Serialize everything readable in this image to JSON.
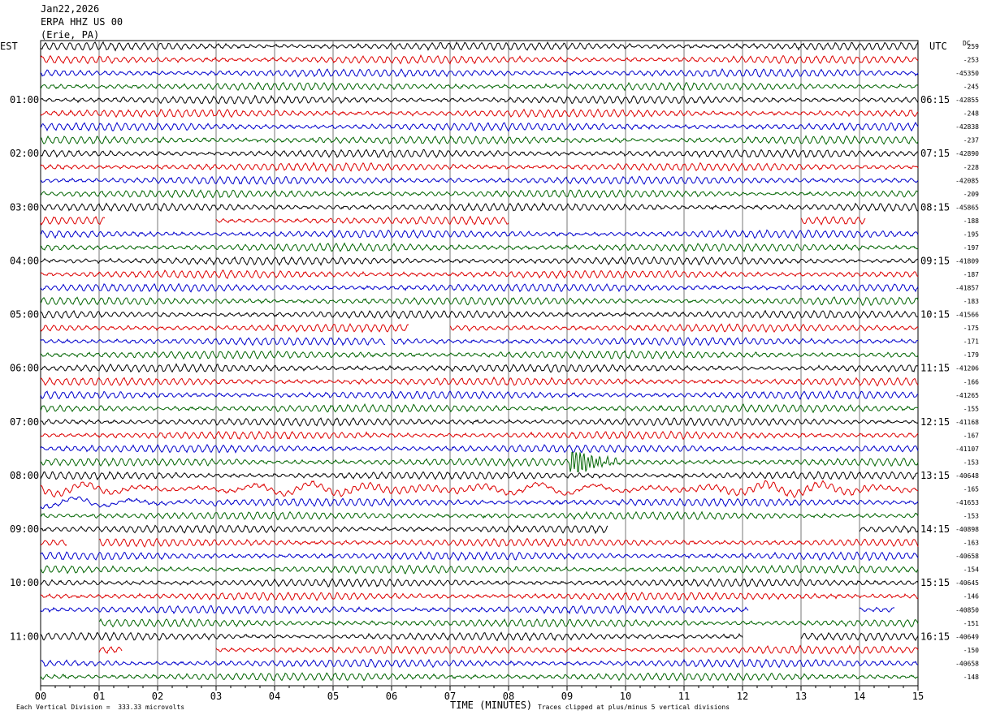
{
  "header": {
    "date": "Jan22,2026",
    "station": "ERPA HHZ US 00",
    "location": "(Erie, PA)"
  },
  "left_tz": "EST",
  "right_tz": "UTC",
  "dc_label": "DC",
  "footer": {
    "vertical_division": "Each Vertical Division =  333.33 microvolts",
    "xlabel": "TIME (MINUTES)",
    "clip_note": "Traces clipped at plus/minus 5 vertical divisions"
  },
  "chart_data": {
    "type": "line",
    "title": "",
    "xlabel": "TIME (MINUTES)",
    "xlim": [
      0,
      15
    ],
    "x_ticks": [
      "00",
      "01",
      "02",
      "03",
      "04",
      "05",
      "06",
      "07",
      "08",
      "09",
      "10",
      "11",
      "12",
      "13",
      "14",
      "15"
    ],
    "left_hour_labels": [
      "01:00",
      "02:00",
      "03:00",
      "04:00",
      "05:00",
      "06:00",
      "07:00",
      "08:00",
      "09:00",
      "10:00",
      "11:00"
    ],
    "right_hour_labels": [
      "06:15",
      "07:15",
      "08:15",
      "09:15",
      "10:15",
      "11:15",
      "12:15",
      "13:15",
      "14:15",
      "15:15",
      "16:15"
    ],
    "trace_colors": [
      "#000000",
      "#dd0000",
      "#0000cc",
      "#006400"
    ],
    "dc_offsets": [
      "259",
      "-253",
      "-45350",
      "-245",
      "-42855",
      "-248",
      "-42838",
      "-237",
      "-42890",
      "-228",
      "-42085",
      "-209",
      "-45865",
      "-188",
      "-195",
      "-197",
      "-41809",
      "-187",
      "-41857",
      "-183",
      "-41566",
      "-175",
      "-171",
      "-179",
      "-41206",
      "-166",
      "-41265",
      "-155",
      "-41168",
      "-167",
      "-41107",
      "-153",
      "-40648",
      "-165",
      "-41653",
      "-153",
      "-40898",
      "-163",
      "-40658",
      "-154",
      "-40645",
      "-146",
      "-40850",
      "-151",
      "-40649",
      "-150",
      "-40658",
      "-148"
    ],
    "row_count": 48,
    "gaps": [
      {
        "row": 13,
        "segments": [
          [
            0,
            1.1
          ],
          [
            3,
            8
          ],
          [
            13,
            14.1
          ]
        ]
      },
      {
        "row": 21,
        "segments": [
          [
            0,
            6.3
          ],
          [
            7,
            15
          ]
        ]
      },
      {
        "row": 22,
        "segments": [
          [
            0,
            5.9
          ],
          [
            6,
            15
          ]
        ]
      },
      {
        "row": 36,
        "segments": [
          [
            0,
            9.7
          ],
          [
            14,
            15
          ]
        ]
      },
      {
        "row": 37,
        "segments": [
          [
            0,
            0.45
          ],
          [
            1,
            15
          ]
        ]
      },
      {
        "row": 42,
        "segments": [
          [
            0,
            12.1
          ],
          [
            14,
            14.6
          ]
        ]
      },
      {
        "row": 43,
        "segments": [
          [
            1,
            15
          ]
        ]
      },
      {
        "row": 44,
        "segments": [
          [
            0,
            12
          ],
          [
            13,
            15
          ]
        ]
      },
      {
        "row": 45,
        "segments": [
          [
            1,
            1.4
          ],
          [
            3,
            15
          ]
        ]
      }
    ],
    "events": [
      {
        "row": 31,
        "start": 9.05,
        "end": 9.9,
        "amp": 2.6
      },
      {
        "row": 33,
        "start": 0,
        "end": 15,
        "amp": 1.6,
        "slow": true
      },
      {
        "row": 34,
        "start": 0,
        "end": 3,
        "amp": 1.4,
        "slow": true
      }
    ]
  }
}
